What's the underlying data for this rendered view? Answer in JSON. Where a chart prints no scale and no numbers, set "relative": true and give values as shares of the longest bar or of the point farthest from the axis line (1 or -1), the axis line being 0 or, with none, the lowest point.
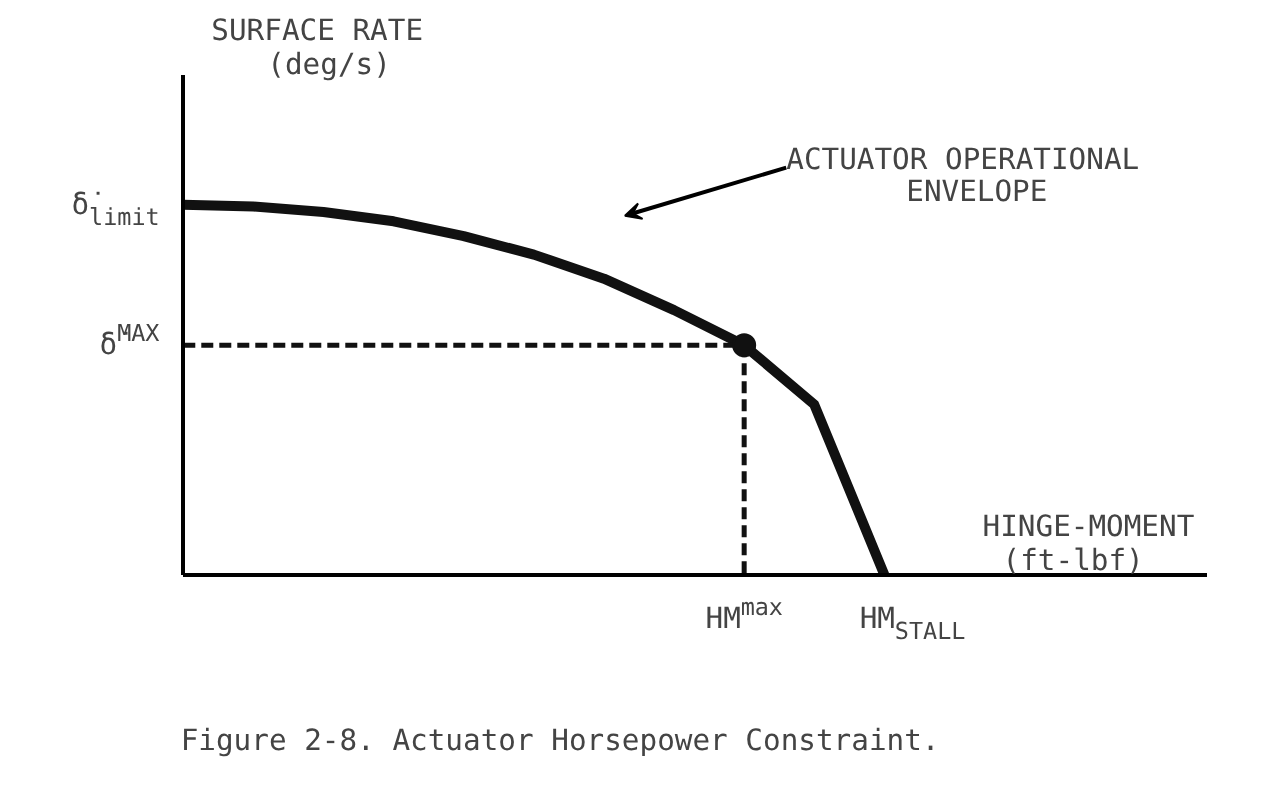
{
  "chart_data": {
    "type": "line",
    "relative": true,
    "title": "Figure 2-8.  Actuator Horsepower Constraint.",
    "xlabel": "HINGE-MOMENT\n(ft-lbf)",
    "ylabel": "SURFACE RATE\n(deg/s)",
    "categories": [
      null,
      null,
      null,
      null,
      null,
      null,
      null,
      null,
      null,
      null,
      null,
      null,
      null
    ],
    "series": [
      {
        "color": "#111111",
        "values": [
          1,
          0.995,
          0.98,
          0.955,
          0.915,
          0.865,
          0.8,
          0.715,
          0.62,
          0.46,
          0,
          null,
          null
        ]
      }
    ],
    "ref_lines": [
      {
        "axis": "y",
        "value": 0.62,
        "label": "δ̇$^{MAX}$",
        "line_style": "dashed",
        "color": "#111111"
      }
    ],
    "annotations": [
      "δ̇$_{limit}$",
      "HM$^{max}$",
      "HM$_{STALL}$",
      "ACTUATOR OPERATIONAL\nENVELOPE"
    ]
  }
}
